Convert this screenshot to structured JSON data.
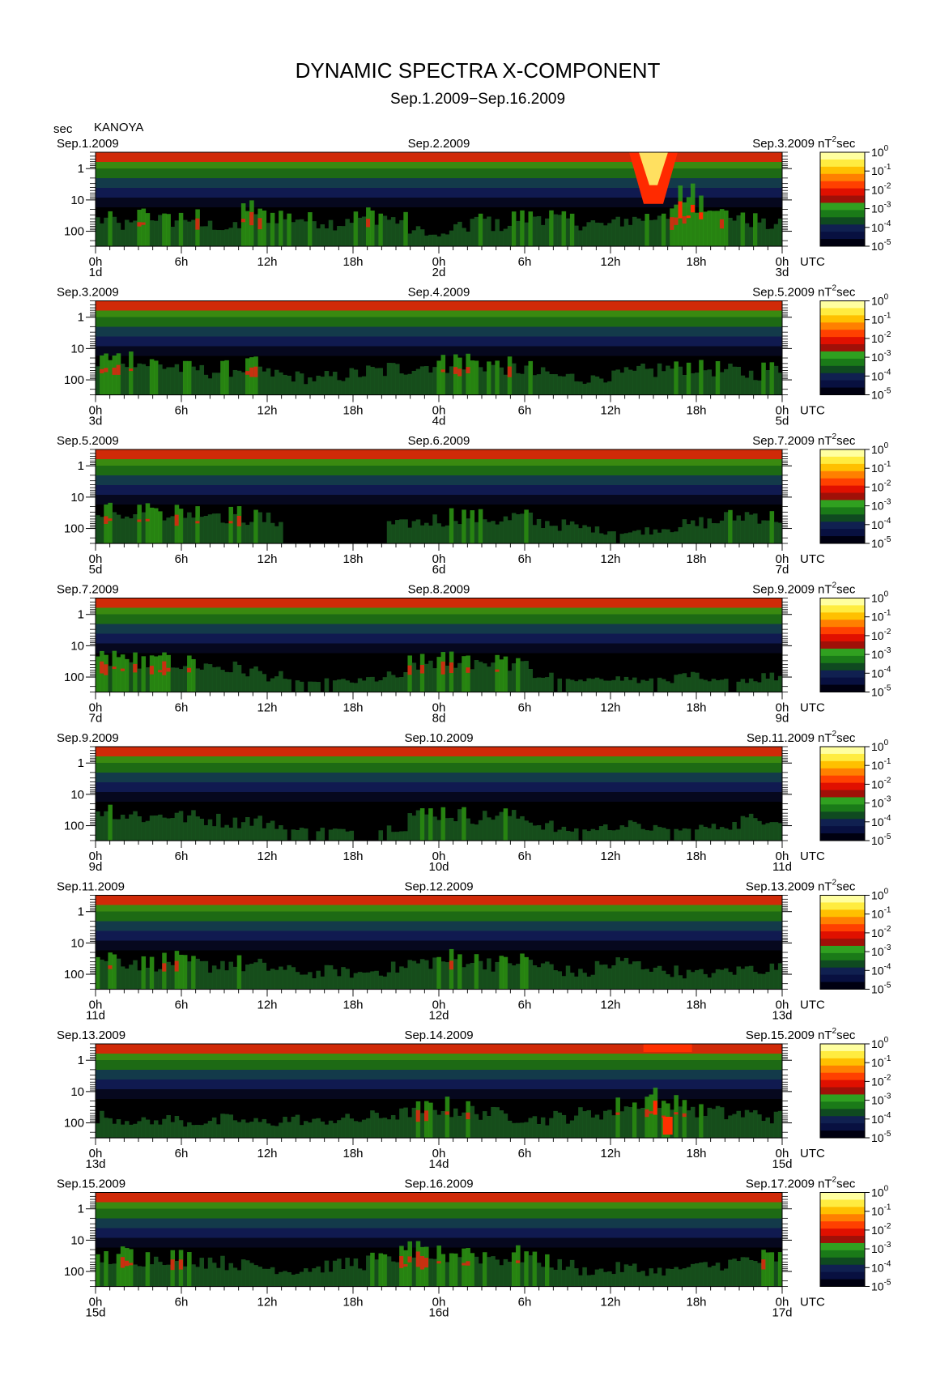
{
  "title": "DYNAMIC SPECTRA X-COMPONENT",
  "subtitle": "Sep.1.2009−Sep.16.2009",
  "y_unit": "sec",
  "station": "KANOYA",
  "colorbar_unit_base": "nT",
  "colorbar_unit_exp": "2",
  "colorbar_unit_tail": "sec",
  "time_unit": "UTC",
  "colorbar_ticks": [
    {
      "base": "10",
      "exp": "0"
    },
    {
      "base": "10",
      "exp": "-1"
    },
    {
      "base": "10",
      "exp": "-2"
    },
    {
      "base": "10",
      "exp": "-3"
    },
    {
      "base": "10",
      "exp": "-4"
    },
    {
      "base": "10",
      "exp": "-5"
    }
  ],
  "colors": {
    "palette": [
      "#ffffa0",
      "#ffe800",
      "#ffa000",
      "#ff3000",
      "#d01000",
      "#1a8a10",
      "#35c010",
      "#10204a",
      "#2030a0",
      "#000000"
    ]
  },
  "chart_data": [
    {
      "type": "heatmap",
      "panel": 1,
      "date_left": "Sep.1.2009",
      "date_mid": "Sep.2.2009",
      "date_right": "Sep.3.2009",
      "y_ticks": [
        "1",
        "10",
        "100"
      ],
      "x_ticks": [
        "0h",
        "6h",
        "12h",
        "18h",
        "0h",
        "6h",
        "12h",
        "18h",
        "0h"
      ],
      "day_labels": [
        "1d",
        "2d",
        "3d"
      ],
      "activity": [
        0.5,
        0.4,
        0.6,
        0.5,
        0.55,
        0.4,
        0.35,
        0.7,
        0.6,
        0.55,
        0.5,
        0.45,
        0.55,
        0.6,
        0.5,
        0.3,
        0.2,
        0.35,
        0.5,
        0.4,
        0.55,
        0.6,
        0.5,
        0.45,
        0.4,
        0.5,
        0.55,
        0.7,
        0.95,
        0.9,
        0.6,
        0.5,
        0.4
      ]
    },
    {
      "type": "heatmap",
      "panel": 2,
      "date_left": "Sep.3.2009",
      "date_mid": "Sep.4.2009",
      "date_right": "Sep.5.2009",
      "y_ticks": [
        "1",
        "10",
        "100"
      ],
      "x_ticks": [
        "0h",
        "6h",
        "12h",
        "18h",
        "0h",
        "6h",
        "12h",
        "18h",
        "0h"
      ],
      "day_labels": [
        "3d",
        "4d",
        "5d"
      ],
      "activity": [
        0.65,
        0.7,
        0.6,
        0.55,
        0.5,
        0.45,
        0.5,
        0.55,
        0.4,
        0.35,
        0.3,
        0.35,
        0.4,
        0.45,
        0.5,
        0.55,
        0.6,
        0.65,
        0.6,
        0.55,
        0.5,
        0.4,
        0.35,
        0.3,
        0.35,
        0.4,
        0.45,
        0.5,
        0.55,
        0.5,
        0.45,
        0.4,
        0.5
      ]
    },
    {
      "type": "heatmap",
      "panel": 3,
      "date_left": "Sep.5.2009",
      "date_mid": "Sep.6.2009",
      "date_right": "Sep.7.2009",
      "y_ticks": [
        "1",
        "10",
        "100"
      ],
      "x_ticks": [
        "0h",
        "6h",
        "12h",
        "18h",
        "0h",
        "6h",
        "12h",
        "18h",
        "0h"
      ],
      "day_labels": [
        "5d",
        "6d",
        "7d"
      ],
      "activity": [
        0.7,
        0.65,
        0.6,
        0.65,
        0.6,
        0.6,
        0.55,
        0.5,
        0.45,
        0.1,
        0.1,
        0.1,
        0.1,
        0.1,
        0.35,
        0.4,
        0.45,
        0.55,
        0.5,
        0.45,
        0.5,
        0.4,
        0.35,
        0.3,
        0.25,
        0.2,
        0.25,
        0.3,
        0.35,
        0.4,
        0.5,
        0.55,
        0.5
      ]
    },
    {
      "type": "heatmap",
      "panel": 4,
      "date_left": "Sep.7.2009",
      "date_mid": "Sep.8.2009",
      "date_right": "Sep.9.2009",
      "y_ticks": [
        "1",
        "10",
        "100"
      ],
      "x_ticks": [
        "0h",
        "6h",
        "12h",
        "18h",
        "0h",
        "6h",
        "12h",
        "18h",
        "0h"
      ],
      "day_labels": [
        "7d",
        "8d",
        "9d"
      ],
      "activity": [
        0.65,
        0.6,
        0.55,
        0.6,
        0.55,
        0.5,
        0.45,
        0.4,
        0.3,
        0.2,
        0.15,
        0.2,
        0.2,
        0.25,
        0.3,
        0.55,
        0.6,
        0.65,
        0.6,
        0.55,
        0.5,
        0.3,
        0.2,
        0.2,
        0.3,
        0.25,
        0.2,
        0.25,
        0.3,
        0.2,
        0.2,
        0.25,
        0.3
      ]
    },
    {
      "type": "heatmap",
      "panel": 5,
      "date_left": "Sep.9.2009",
      "date_mid": "Sep.10.2009",
      "date_right": "Sep.11.2009",
      "y_ticks": [
        "1",
        "10",
        "100"
      ],
      "x_ticks": [
        "0h",
        "6h",
        "12h",
        "18h",
        "0h",
        "6h",
        "12h",
        "18h",
        "0h"
      ],
      "day_labels": [
        "9d",
        "10d",
        "11d"
      ],
      "activity": [
        0.6,
        0.5,
        0.45,
        0.5,
        0.45,
        0.4,
        0.35,
        0.4,
        0.3,
        0.2,
        0.2,
        0.2,
        0.15,
        0.2,
        0.25,
        0.5,
        0.55,
        0.5,
        0.45,
        0.5,
        0.45,
        0.3,
        0.2,
        0.2,
        0.25,
        0.3,
        0.25,
        0.2,
        0.2,
        0.25,
        0.3,
        0.4,
        0.45
      ]
    },
    {
      "type": "heatmap",
      "panel": 6,
      "date_left": "Sep.11.2009",
      "date_mid": "Sep.12.2009",
      "date_right": "Sep.13.2009",
      "y_ticks": [
        "1",
        "10",
        "100"
      ],
      "x_ticks": [
        "0h",
        "6h",
        "12h",
        "18h",
        "0h",
        "6h",
        "12h",
        "18h",
        "0h"
      ],
      "day_labels": [
        "11d",
        "12d",
        "13d"
      ],
      "activity": [
        0.6,
        0.55,
        0.5,
        0.55,
        0.5,
        0.45,
        0.5,
        0.45,
        0.4,
        0.35,
        0.3,
        0.35,
        0.3,
        0.35,
        0.4,
        0.5,
        0.55,
        0.6,
        0.55,
        0.5,
        0.55,
        0.45,
        0.35,
        0.3,
        0.45,
        0.5,
        0.45,
        0.35,
        0.3,
        0.3,
        0.35,
        0.4,
        0.4
      ]
    },
    {
      "type": "heatmap",
      "panel": 7,
      "date_left": "Sep.13.2009",
      "date_mid": "Sep.14.2009",
      "date_right": "Sep.15.2009",
      "y_ticks": [
        "1",
        "10",
        "100"
      ],
      "x_ticks": [
        "0h",
        "6h",
        "12h",
        "18h",
        "0h",
        "6h",
        "12h",
        "18h",
        "0h"
      ],
      "day_labels": [
        "13d",
        "14d",
        "15d"
      ],
      "activity": [
        0.4,
        0.35,
        0.3,
        0.35,
        0.3,
        0.3,
        0.35,
        0.3,
        0.3,
        0.35,
        0.3,
        0.35,
        0.35,
        0.4,
        0.45,
        0.55,
        0.6,
        0.55,
        0.5,
        0.45,
        0.4,
        0.35,
        0.4,
        0.45,
        0.5,
        0.6,
        0.75,
        0.65,
        0.55,
        0.5,
        0.45,
        0.45,
        0.4
      ]
    },
    {
      "type": "heatmap",
      "panel": 8,
      "date_left": "Sep.15.2009",
      "date_mid": "Sep.16.2009",
      "date_right": "Sep.17.2009",
      "y_ticks": [
        "1",
        "10",
        "100"
      ],
      "x_ticks": [
        "0h",
        "6h",
        "12h",
        "18h",
        "0h",
        "6h",
        "12h",
        "18h",
        "0h"
      ],
      "day_labels": [
        "15d",
        "16d",
        "17d"
      ],
      "activity": [
        0.55,
        0.6,
        0.55,
        0.6,
        0.55,
        0.5,
        0.45,
        0.4,
        0.35,
        0.3,
        0.35,
        0.4,
        0.45,
        0.5,
        0.6,
        0.65,
        0.6,
        0.65,
        0.6,
        0.55,
        0.6,
        0.5,
        0.4,
        0.3,
        0.3,
        0.35,
        0.3,
        0.3,
        0.35,
        0.4,
        0.45,
        0.5,
        0.55
      ]
    }
  ]
}
